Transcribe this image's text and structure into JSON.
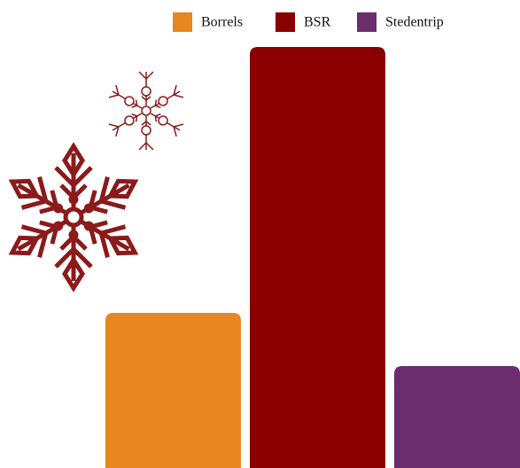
{
  "chart_data": {
    "type": "bar",
    "categories": [
      "Borrels",
      "BSR",
      "Stedentrip"
    ],
    "series": [
      {
        "name": "Borrels",
        "color": "#e8861f",
        "values": [
          175,
          null,
          null
        ]
      },
      {
        "name": "BSR",
        "color": "#8b0000",
        "values": [
          null,
          475,
          null
        ]
      },
      {
        "name": "Stedentrip",
        "color": "#6b2d6b",
        "values": [
          null,
          null,
          115
        ]
      }
    ],
    "legend": "top"
  }
}
